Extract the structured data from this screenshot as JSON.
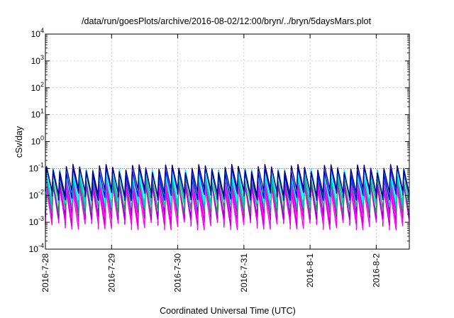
{
  "chart_data": {
    "type": "line",
    "title": "/data/run/goesPlots/archive/2016-08-02/12:00/bryn/../bryn/5daysMars.plot",
    "xlabel": "Coordinated Universal Time (UTC)",
    "ylabel": "cSv/day",
    "x_scale": "time",
    "y_scale": "log",
    "xlim": [
      "2016-07-28T00:00",
      "2016-08-02T12:00"
    ],
    "ylim": [
      0.0001,
      10000
    ],
    "grid": true,
    "legend": "none",
    "x_ticks": [
      "2016-7-28",
      "2016-7-29",
      "2016-7-30",
      "2016-7-31",
      "2016-8-1",
      "2016-8-2"
    ],
    "y_ticks": [
      {
        "value": 0.0001,
        "mant": "10",
        "exp": "-4"
      },
      {
        "value": 0.001,
        "mant": "10",
        "exp": "-3"
      },
      {
        "value": 0.01,
        "mant": "10",
        "exp": "-2"
      },
      {
        "value": 0.1,
        "mant": "10",
        "exp": "-1"
      },
      {
        "value": 1,
        "mant": "10",
        "exp": "0"
      },
      {
        "value": 10,
        "mant": "10",
        "exp": "1"
      },
      {
        "value": 100,
        "mant": "10",
        "exp": "2"
      },
      {
        "value": 1000,
        "mant": "10",
        "exp": "3"
      },
      {
        "value": 10000,
        "mant": "10",
        "exp": "4"
      }
    ],
    "reference_line": {
      "value": 0.1,
      "color": "#ff0000"
    },
    "cycle_days": 0.1,
    "series": [
      {
        "color": "#ff00ff",
        "peak": 0.02,
        "trough": 0.0008
      },
      {
        "color": "#cc00cc",
        "peak": 0.025,
        "trough": 0.0012
      },
      {
        "color": "#ff00ff",
        "peak": 0.03,
        "trough": 0.0016
      },
      {
        "color": "#9400d3",
        "peak": 0.04,
        "trough": 0.002
      },
      {
        "color": "#2e8b57",
        "peak": 0.05,
        "trough": 0.003
      },
      {
        "color": "#20b2aa",
        "peak": 0.07,
        "trough": 0.005
      },
      {
        "color": "#00cccc",
        "peak": 0.07,
        "trough": 0.006
      },
      {
        "color": "#00ffff",
        "peak": 0.08,
        "trough": 0.008
      },
      {
        "color": "#0000ff",
        "peak": 0.09,
        "trough": 0.01
      },
      {
        "color": "#000080",
        "peak": 0.11,
        "trough": 0.013
      }
    ]
  }
}
